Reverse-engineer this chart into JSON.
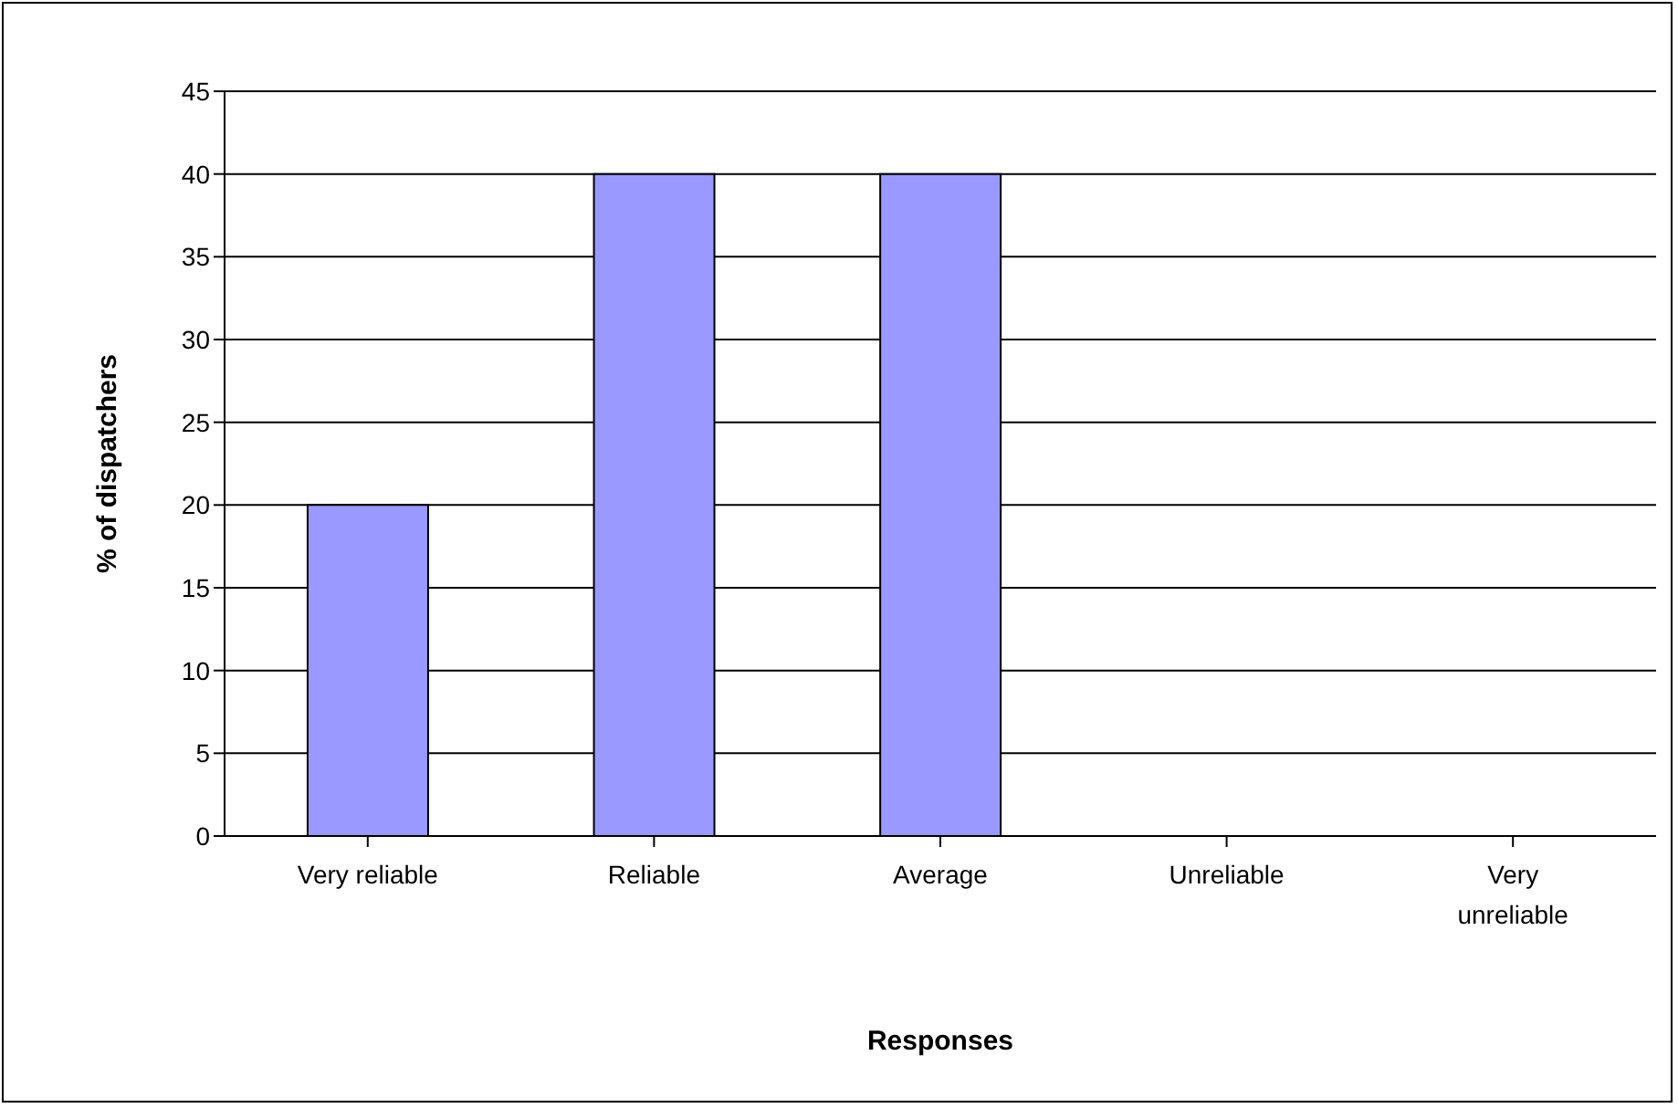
{
  "chart_data": {
    "type": "bar",
    "xlabel": "Responses",
    "ylabel": "% of dispatchers",
    "categories": [
      "Very reliable",
      "Reliable",
      "Average",
      "Unreliable",
      "Very unreliable"
    ],
    "values": [
      20,
      40,
      40,
      0,
      0
    ],
    "color": "#9999ff",
    "ylim": [
      0,
      45
    ],
    "yticks": [
      0,
      5,
      10,
      15,
      20,
      25,
      30,
      35,
      40,
      45
    ],
    "grid": "y"
  }
}
